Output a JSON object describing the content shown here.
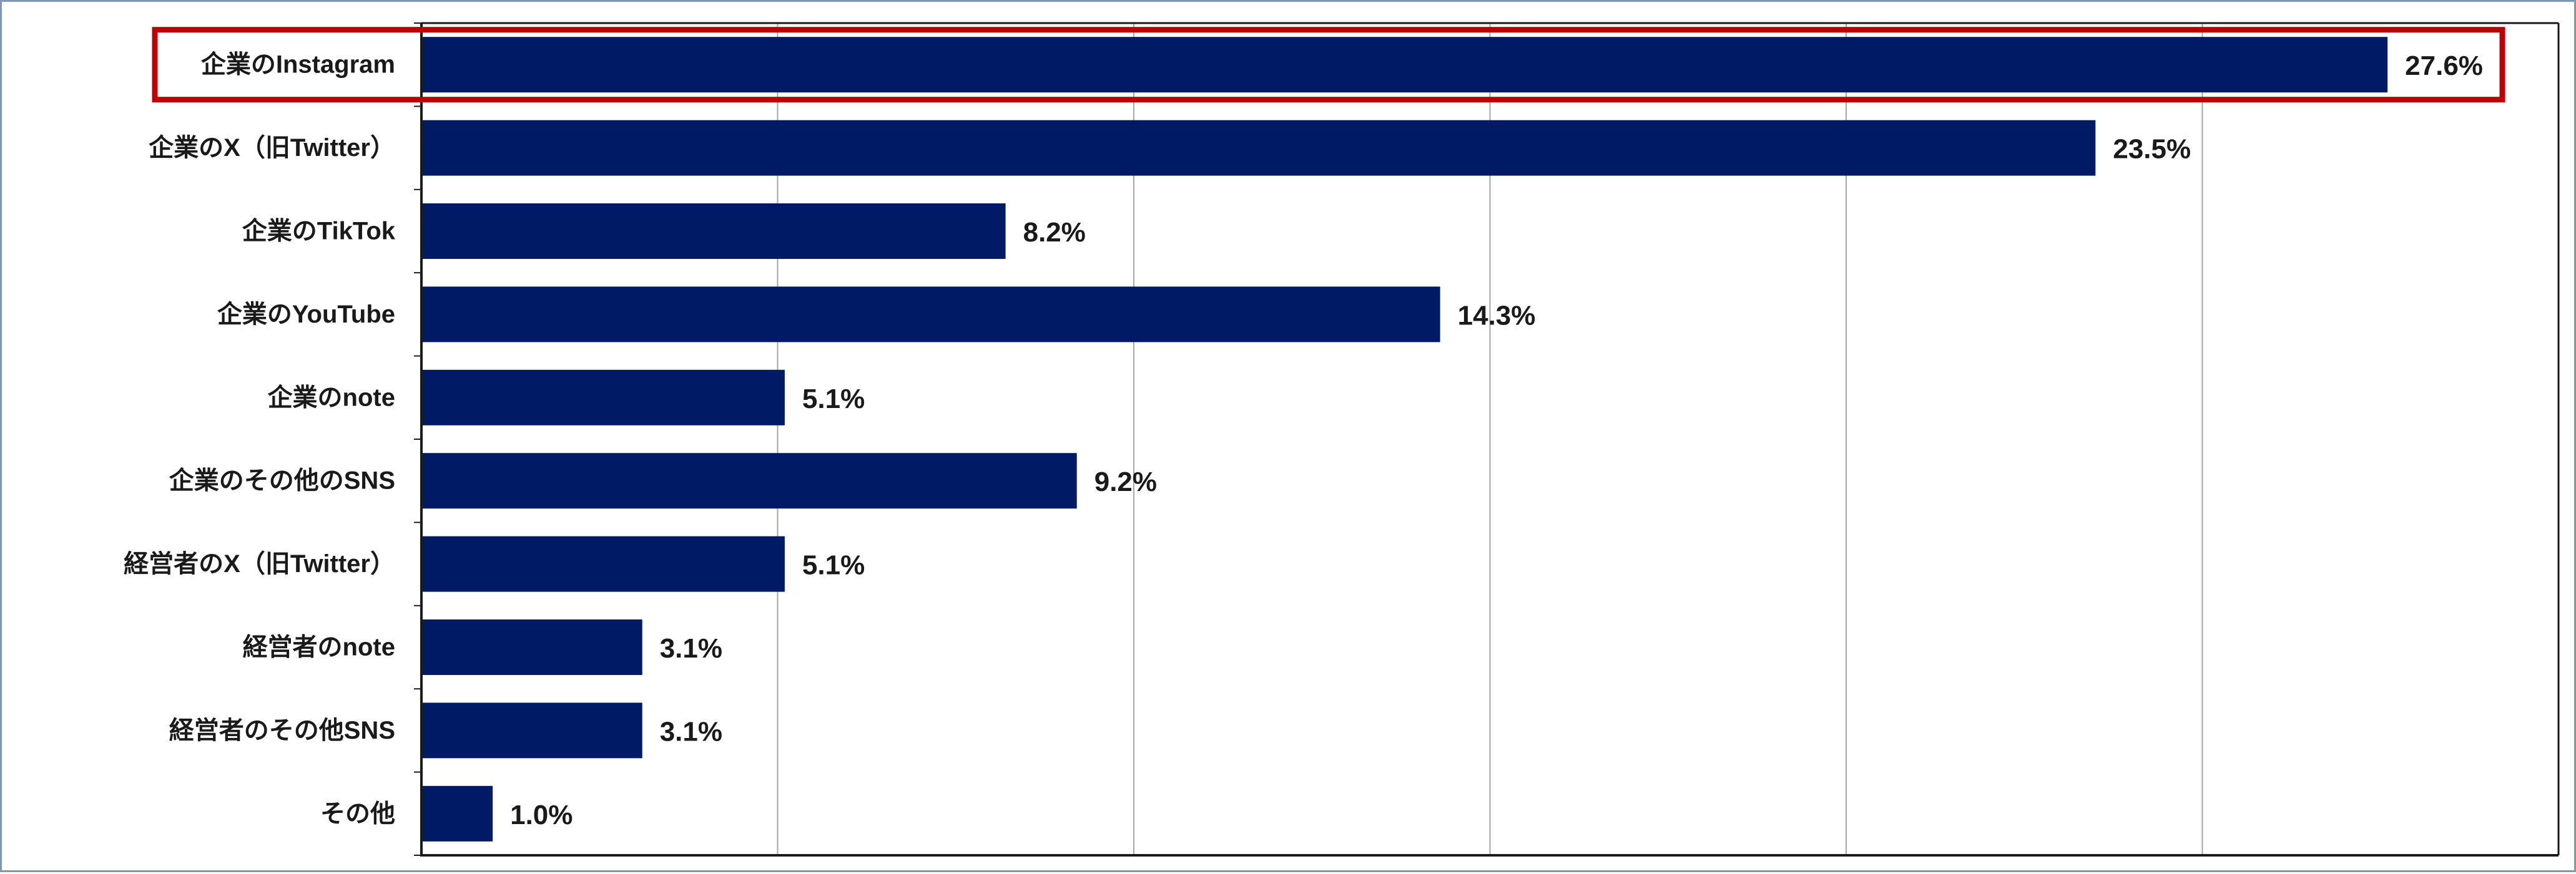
{
  "chart_data": {
    "type": "bar",
    "orientation": "horizontal",
    "title": "",
    "xlabel": "",
    "ylabel": "",
    "categories": [
      "企業のInstagram",
      "企業のX（旧Twitter）",
      "企業のTikTok",
      "企業のYouTube",
      "企業のnote",
      "企業のその他のSNS",
      "経営者のX（旧Twitter）",
      "経営者のnote",
      "経営者のその他SNS",
      "その他"
    ],
    "values": [
      27.6,
      23.5,
      8.2,
      14.3,
      5.1,
      9.2,
      5.1,
      3.1,
      3.1,
      1.0
    ],
    "value_labels": [
      "27.6%",
      "23.5%",
      "8.2%",
      "14.3%",
      "5.1%",
      "9.2%",
      "5.1%",
      "3.1%",
      "3.1%",
      "1.0%"
    ],
    "xlim": [
      0,
      30
    ],
    "grid": "vertical",
    "gridline_interval": 5,
    "bar_color": "#001a66",
    "highlight": {
      "category": "企業のInstagram",
      "color": "#c00000"
    }
  }
}
